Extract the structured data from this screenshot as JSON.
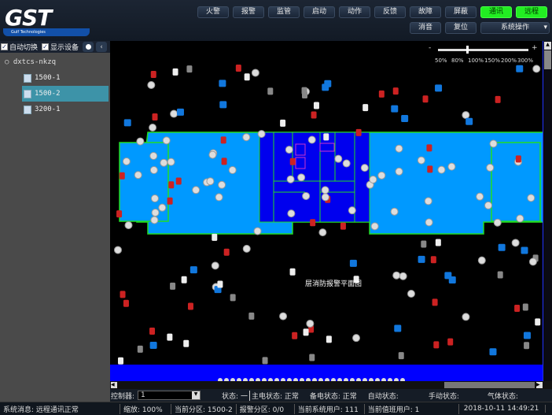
{
  "logo": {
    "text": "GST",
    "tagline": "Gulf Technologies"
  },
  "toolbar": {
    "row1": [
      {
        "label": "火警"
      },
      {
        "label": "报警"
      },
      {
        "label": "监管"
      },
      {
        "label": "启动"
      },
      {
        "label": "动作"
      },
      {
        "label": "反馈"
      },
      {
        "label": "故障"
      },
      {
        "label": "屏蔽"
      },
      {
        "label": "通讯",
        "active": true
      },
      {
        "label": "远程",
        "active": true
      }
    ],
    "row2": [
      {
        "label": "消音"
      },
      {
        "label": "复位"
      },
      {
        "label": "系统操作",
        "dropdown": true
      }
    ]
  },
  "sidebar": {
    "auto_switch_label": "自动切换",
    "auto_switch_checked": true,
    "show_devices_label": "显示设备",
    "show_devices_checked": true,
    "tree_root": "dxtcs-nkzq",
    "items": [
      {
        "label": "1500-1"
      },
      {
        "label": "1500-2",
        "selected": true
      },
      {
        "label": "3200-1"
      }
    ]
  },
  "map": {
    "zoom_levels": [
      "50%",
      "80%",
      "100%",
      "150%",
      "200%",
      "300%"
    ],
    "zoom_selected": "100%",
    "zoom_minus": "-",
    "zoom_plus": "+",
    "floor_label": "层消防报警平面图"
  },
  "status_row": {
    "controller_label": "控制器:",
    "controller_value": "1",
    "state": "状态: 一",
    "main_power": "主电状态: 正常",
    "backup_power": "备电状态: 正常",
    "auto_state": "自动状态:",
    "manual_state": "手动状态:",
    "gas_state": "气体状态:"
  },
  "bottom_bar": {
    "message": "系统消息: 远程通讯正常",
    "zoom": "缩放: 100%",
    "current_zone": "当前分区: 1500-2",
    "alarm_zone": "报警分区: 0/0",
    "system_user": "当前系统用户: 111",
    "duty_user": "当前值班用户: 1",
    "datetime": "2018-10-11 14:49:21"
  },
  "colors": {
    "active_button": "#22ee22",
    "selected_item": "#3d93a8",
    "floor_light": "#0099ff",
    "floor_dark": "#0000ee",
    "wall": "#22dd22"
  }
}
